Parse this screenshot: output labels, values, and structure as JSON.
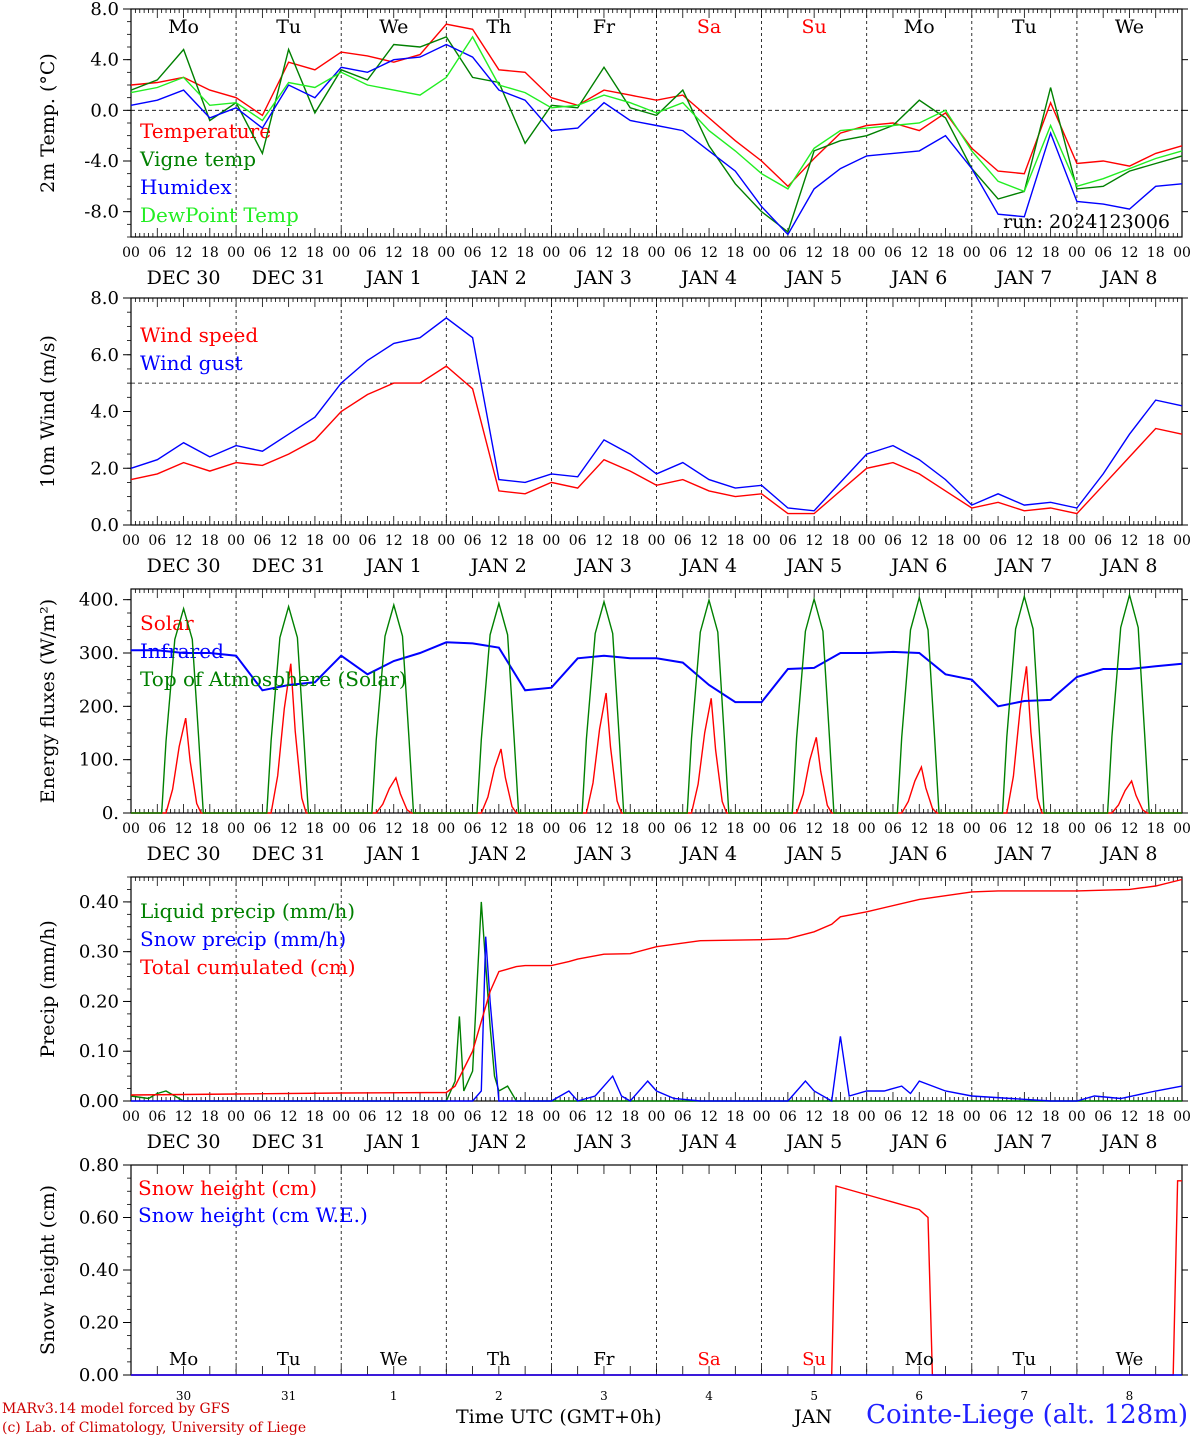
{
  "run_label": "run: 2024123006",
  "station": "Cointe-Liege (alt. 128m)",
  "credits": [
    "MARv3.14 model forced by GFS",
    "(c) Lab. of Climatology, University of Liege"
  ],
  "x_axis_title": "Time UTC (GMT+0h)",
  "bottom_stray_label": "JAN",
  "weekdays": [
    "Mo",
    "Tu",
    "We",
    "Th",
    "Fr",
    "Sa",
    "Su",
    "Mo",
    "Tu",
    "We"
  ],
  "weekend_days": [
    "Sa",
    "Su"
  ],
  "hour_ticks": [
    "00",
    "06",
    "12",
    "18"
  ],
  "date_labels": [
    "DEC 30",
    "DEC 31",
    "JAN  1",
    "JAN  2",
    "JAN  3",
    "JAN  4",
    "JAN  5",
    "JAN  6",
    "JAN  7",
    "JAN  8"
  ],
  "day_numbers": [
    "30",
    "31",
    "1",
    "2",
    "3",
    "4",
    "5",
    "6",
    "7",
    "8"
  ],
  "colors": {
    "red": "#ff0000",
    "green": "#008000",
    "blue": "#0000ff",
    "lightgreen": "#22ee22",
    "grid": "#000000"
  },
  "chart_data": [
    {
      "type": "line",
      "ylabel": "2m Temp. (°C)",
      "ylim": [
        -10,
        8
      ],
      "yticks": [
        "-8.0",
        "-4.0",
        "0.0",
        "4.0",
        "8.0"
      ],
      "ytick_values": [
        -8,
        -4,
        0,
        4,
        8
      ],
      "x_unit": "hours since DEC 30 00 UTC",
      "xlim": [
        0,
        240
      ],
      "ref_line": 0,
      "series": [
        {
          "name": "Temperature",
          "color": "#ff0000",
          "x": [
            0,
            6,
            12,
            18,
            24,
            30,
            36,
            42,
            48,
            54,
            60,
            66,
            72,
            78,
            84,
            90,
            96,
            102,
            108,
            114,
            120,
            126,
            132,
            138,
            144,
            150,
            156,
            162,
            168,
            174,
            180,
            186,
            192,
            198,
            204,
            210,
            216,
            222,
            228,
            234,
            240
          ],
          "y": [
            2.0,
            2.2,
            2.6,
            1.6,
            1.0,
            -0.4,
            3.8,
            3.2,
            4.6,
            4.3,
            3.8,
            4.4,
            6.8,
            6.4,
            3.2,
            3.0,
            1.0,
            0.4,
            1.6,
            1.2,
            0.8,
            1.2,
            -0.6,
            -2.4,
            -4.0,
            -6.0,
            -3.8,
            -1.8,
            -1.2,
            -1.0,
            -1.6,
            -0.2,
            -3.0,
            -4.8,
            -5.0,
            0.6,
            -4.2,
            -4.0,
            -4.4,
            -3.4,
            -2.8
          ]
        },
        {
          "name": "Vigne temp",
          "color": "#008000",
          "x": [
            0,
            6,
            12,
            18,
            24,
            30,
            36,
            42,
            48,
            54,
            60,
            66,
            72,
            78,
            84,
            90,
            96,
            102,
            108,
            114,
            120,
            126,
            132,
            138,
            144,
            150,
            156,
            162,
            168,
            174,
            180,
            186,
            192,
            198,
            204,
            210,
            216,
            222,
            228,
            234,
            240
          ],
          "y": [
            1.6,
            2.4,
            4.8,
            -0.8,
            0.6,
            -3.4,
            4.8,
            -0.2,
            3.2,
            2.4,
            5.2,
            5.0,
            5.8,
            2.6,
            2.2,
            -2.6,
            0.4,
            0.2,
            3.4,
            0.2,
            -0.4,
            1.6,
            -2.8,
            -5.8,
            -8.0,
            -9.6,
            -3.2,
            -2.4,
            -2.0,
            -1.2,
            0.8,
            -0.6,
            -4.6,
            -7.0,
            -6.4,
            1.8,
            -6.2,
            -6.0,
            -4.8,
            -4.2,
            -3.6
          ]
        },
        {
          "name": "Humidex",
          "color": "#0000ff",
          "x": [
            0,
            6,
            12,
            18,
            24,
            30,
            36,
            42,
            48,
            54,
            60,
            66,
            72,
            78,
            84,
            90,
            96,
            102,
            108,
            114,
            120,
            126,
            132,
            138,
            144,
            150,
            156,
            162,
            168,
            174,
            180,
            186,
            192,
            198,
            204,
            210,
            216,
            222,
            228,
            234,
            240
          ],
          "y": [
            0.4,
            0.8,
            1.6,
            -0.6,
            0.2,
            -1.4,
            2.0,
            1.0,
            3.4,
            3.0,
            4.0,
            4.2,
            5.2,
            4.2,
            1.6,
            0.8,
            -1.6,
            -1.4,
            0.6,
            -0.8,
            -1.2,
            -1.6,
            -3.2,
            -4.8,
            -7.6,
            -9.8,
            -6.2,
            -4.6,
            -3.6,
            -3.4,
            -3.2,
            -2.0,
            -4.6,
            -8.2,
            -8.4,
            -1.8,
            -7.2,
            -7.4,
            -7.8,
            -6.0,
            -5.8
          ]
        },
        {
          "name": "DewPoint Temp",
          "color": "#22ee22",
          "x": [
            0,
            6,
            12,
            18,
            24,
            30,
            36,
            42,
            48,
            54,
            60,
            66,
            72,
            78,
            84,
            90,
            96,
            102,
            108,
            114,
            120,
            126,
            132,
            138,
            144,
            150,
            156,
            162,
            168,
            174,
            180,
            186,
            192,
            198,
            204,
            210,
            216,
            222,
            228,
            234,
            240
          ],
          "y": [
            1.4,
            1.8,
            2.6,
            0.4,
            0.6,
            -0.8,
            2.2,
            1.8,
            3.0,
            2.0,
            1.6,
            1.2,
            2.6,
            5.8,
            2.0,
            1.4,
            0.2,
            0.4,
            1.2,
            0.6,
            -0.2,
            0.6,
            -1.6,
            -3.2,
            -5.0,
            -6.2,
            -3.0,
            -1.6,
            -1.4,
            -1.2,
            -1.0,
            0.0,
            -3.2,
            -5.6,
            -6.4,
            -1.2,
            -6.0,
            -5.4,
            -4.6,
            -3.8,
            -3.2
          ]
        }
      ]
    },
    {
      "type": "line",
      "ylabel": "10m Wind (m/s)",
      "ylim": [
        0,
        8
      ],
      "yticks": [
        "0.0",
        "2.0",
        "4.0",
        "6.0",
        "8.0"
      ],
      "ytick_values": [
        0,
        2,
        4,
        6,
        8
      ],
      "x_unit": "hours since DEC 30 00 UTC",
      "xlim": [
        0,
        240
      ],
      "ref_line": 5,
      "series": [
        {
          "name": "Wind speed",
          "color": "#ff0000",
          "x": [
            0,
            6,
            12,
            18,
            24,
            30,
            36,
            42,
            48,
            54,
            60,
            66,
            72,
            78,
            84,
            90,
            96,
            102,
            108,
            114,
            120,
            126,
            132,
            138,
            144,
            150,
            156,
            162,
            168,
            174,
            180,
            186,
            192,
            198,
            204,
            210,
            216,
            222,
            228,
            234,
            240
          ],
          "y": [
            1.6,
            1.8,
            2.2,
            1.9,
            2.2,
            2.1,
            2.5,
            3.0,
            4.0,
            4.6,
            5.0,
            5.0,
            5.6,
            4.8,
            1.2,
            1.1,
            1.5,
            1.3,
            2.3,
            1.9,
            1.4,
            1.6,
            1.2,
            1.0,
            1.1,
            0.4,
            0.4,
            1.2,
            2.0,
            2.2,
            1.8,
            1.2,
            0.6,
            0.8,
            0.5,
            0.6,
            0.4,
            1.4,
            2.4,
            3.4,
            3.2
          ]
        },
        {
          "name": "Wind gust",
          "color": "#0000ff",
          "x": [
            0,
            6,
            12,
            18,
            24,
            30,
            36,
            42,
            48,
            54,
            60,
            66,
            72,
            78,
            84,
            90,
            96,
            102,
            108,
            114,
            120,
            126,
            132,
            138,
            144,
            150,
            156,
            162,
            168,
            174,
            180,
            186,
            192,
            198,
            204,
            210,
            216,
            222,
            228,
            234,
            240
          ],
          "y": [
            2.0,
            2.3,
            2.9,
            2.4,
            2.8,
            2.6,
            3.2,
            3.8,
            5.0,
            5.8,
            6.4,
            6.6,
            7.3,
            6.6,
            1.6,
            1.5,
            1.8,
            1.7,
            3.0,
            2.5,
            1.8,
            2.2,
            1.6,
            1.3,
            1.4,
            0.6,
            0.5,
            1.5,
            2.5,
            2.8,
            2.3,
            1.6,
            0.7,
            1.1,
            0.7,
            0.8,
            0.6,
            1.8,
            3.2,
            4.4,
            4.2
          ]
        }
      ]
    },
    {
      "type": "line",
      "ylabel": "Energy fluxes (W/m²)",
      "ylim": [
        0,
        420
      ],
      "yticks": [
        "0.",
        "100.",
        "200.",
        "300.",
        "400."
      ],
      "ytick_values": [
        0,
        100,
        200,
        300,
        400
      ],
      "x_unit": "hours since DEC 30 00 UTC",
      "xlim": [
        0,
        240
      ],
      "series": [
        {
          "name": "Solar",
          "color": "#ff0000",
          "day_peaks": [
            178,
            280,
            66,
            120,
            225,
            215,
            142,
            86,
            275,
            60
          ]
        },
        {
          "name": "Infrared",
          "color": "#0000ff",
          "x": [
            0,
            6,
            12,
            18,
            24,
            30,
            36,
            42,
            48,
            54,
            60,
            66,
            72,
            78,
            84,
            90,
            96,
            102,
            108,
            114,
            120,
            126,
            132,
            138,
            144,
            150,
            156,
            162,
            168,
            174,
            180,
            186,
            192,
            198,
            204,
            210,
            216,
            222,
            228,
            234,
            240
          ],
          "y": [
            305,
            305,
            300,
            300,
            295,
            230,
            240,
            245,
            295,
            260,
            285,
            300,
            320,
            318,
            310,
            230,
            235,
            290,
            295,
            290,
            290,
            282,
            240,
            208,
            208,
            270,
            272,
            300,
            300,
            302,
            300,
            260,
            250,
            200,
            210,
            212,
            255,
            270,
            270,
            275,
            280
          ]
        },
        {
          "name": "Top of Atmosphere (Solar)",
          "color": "#008000",
          "day_peaks": [
            383,
            387,
            390,
            393,
            396,
            399,
            401,
            404,
            406,
            409
          ]
        }
      ]
    },
    {
      "type": "line",
      "ylabel": "Precip (mm/h)",
      "ylim": [
        0,
        0.45
      ],
      "yticks": [
        "0.00",
        "0.10",
        "0.20",
        "0.30",
        "0.40"
      ],
      "ytick_values": [
        0,
        0.1,
        0.2,
        0.3,
        0.4
      ],
      "x_unit": "hours since DEC 30 00 UTC",
      "xlim": [
        0,
        240
      ],
      "series": [
        {
          "name": "Liquid precip (mm/h)",
          "color": "#008000",
          "x": [
            0,
            4,
            6,
            8,
            10,
            12,
            24,
            60,
            72,
            74,
            75,
            76,
            78,
            80,
            82,
            83,
            84,
            86,
            88,
            90,
            92,
            96,
            240
          ],
          "y": [
            0.01,
            0.005,
            0.015,
            0.02,
            0.01,
            0.0,
            0.0,
            0.0,
            0.0,
            0.04,
            0.17,
            0.02,
            0.06,
            0.4,
            0.15,
            0.05,
            0.02,
            0.03,
            0.0,
            0.0,
            0.0,
            0.0,
            0.0
          ]
        },
        {
          "name": "Snow precip (mm/h)",
          "color": "#0000ff",
          "x": [
            0,
            72,
            78,
            80,
            81,
            82,
            84,
            86,
            88,
            96,
            100,
            102,
            106,
            110,
            112,
            114,
            118,
            120,
            124,
            130,
            136,
            144,
            150,
            154,
            156,
            160,
            162,
            164,
            168,
            172,
            176,
            178,
            180,
            186,
            192,
            210,
            216,
            220,
            226,
            234,
            240
          ],
          "y": [
            0.0,
            0.0,
            0.0,
            0.02,
            0.33,
            0.2,
            0.0,
            0.0,
            0.0,
            0.0,
            0.02,
            0.0,
            0.01,
            0.05,
            0.01,
            0.0,
            0.04,
            0.02,
            0.005,
            0.0,
            0.0,
            0.0,
            0.0,
            0.04,
            0.02,
            0.0,
            0.13,
            0.01,
            0.02,
            0.02,
            0.03,
            0.015,
            0.04,
            0.02,
            0.01,
            0.0,
            0.0,
            0.01,
            0.005,
            0.02,
            0.03
          ]
        },
        {
          "name": "Total cumulated (cm)",
          "color": "#ff0000",
          "x": [
            0,
            24,
            48,
            72,
            74,
            78,
            80,
            82,
            84,
            88,
            90,
            96,
            100,
            102,
            108,
            114,
            120,
            130,
            144,
            150,
            156,
            160,
            162,
            168,
            180,
            192,
            198,
            216,
            228,
            234,
            240
          ],
          "y": [
            0.012,
            0.014,
            0.016,
            0.017,
            0.03,
            0.1,
            0.16,
            0.22,
            0.26,
            0.27,
            0.272,
            0.272,
            0.28,
            0.285,
            0.295,
            0.296,
            0.31,
            0.322,
            0.324,
            0.326,
            0.34,
            0.355,
            0.37,
            0.38,
            0.405,
            0.42,
            0.422,
            0.422,
            0.425,
            0.432,
            0.445
          ]
        }
      ]
    },
    {
      "type": "line",
      "ylabel": "Snow height (cm)",
      "ylim": [
        0,
        0.8
      ],
      "yticks": [
        "0.00",
        "0.20",
        "0.40",
        "0.60",
        "0.80"
      ],
      "ytick_values": [
        0,
        0.2,
        0.4,
        0.6,
        0.8
      ],
      "x_unit": "hours since DEC 30 00 UTC",
      "xlim": [
        0,
        240
      ],
      "series": [
        {
          "name": "Snow height (cm)",
          "color": "#ff0000",
          "x": [
            0,
            160,
            161,
            180,
            182,
            183,
            238,
            239,
            240
          ],
          "y": [
            0,
            0,
            0.72,
            0.63,
            0.6,
            0,
            0,
            0.74,
            0.74
          ]
        },
        {
          "name": "Snow height (cm W.E.)",
          "color": "#0000ff",
          "x": [
            0,
            240
          ],
          "y": [
            0,
            0
          ]
        }
      ]
    }
  ]
}
